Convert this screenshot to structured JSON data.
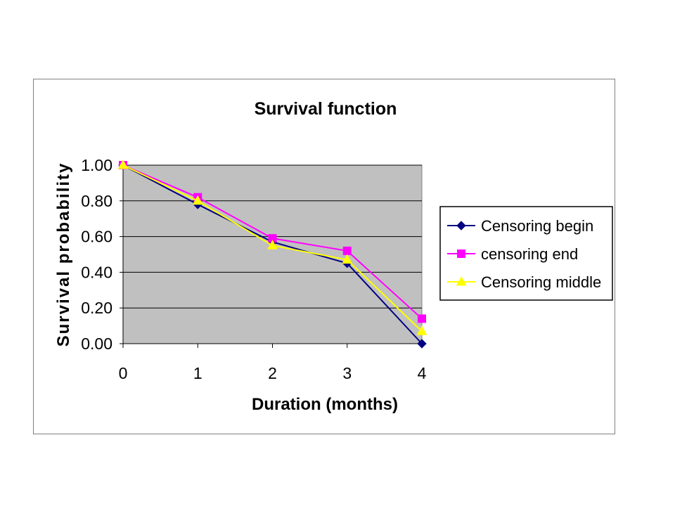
{
  "chart_data": {
    "type": "line",
    "title": "Survival function",
    "xlabel": "Duration (months)",
    "ylabel": "Survival probability",
    "x": [
      0,
      1,
      2,
      3,
      4
    ],
    "xlim": [
      0,
      4
    ],
    "ylim": [
      0,
      1
    ],
    "x_ticks": [
      "0",
      "1",
      "2",
      "3",
      "4"
    ],
    "y_ticks": [
      "0.00",
      "0.20",
      "0.40",
      "0.60",
      "0.80",
      "1.00"
    ],
    "y_tick_values": [
      0,
      0.2,
      0.4,
      0.6,
      0.8,
      1.0
    ],
    "grid": true,
    "plot_background": "#c0c0c0",
    "legend_position": "right",
    "series": [
      {
        "name": "Censoring begin",
        "values": [
          1.0,
          0.78,
          0.57,
          0.45,
          0.0
        ],
        "color": "#000080",
        "marker": "diamond"
      },
      {
        "name": "censoring end",
        "values": [
          1.0,
          0.82,
          0.59,
          0.52,
          0.14
        ],
        "color": "#ff00ff",
        "marker": "square"
      },
      {
        "name": "Censoring middle",
        "values": [
          1.0,
          0.8,
          0.55,
          0.47,
          0.07
        ],
        "color": "#ffff00",
        "marker": "triangle"
      }
    ]
  }
}
